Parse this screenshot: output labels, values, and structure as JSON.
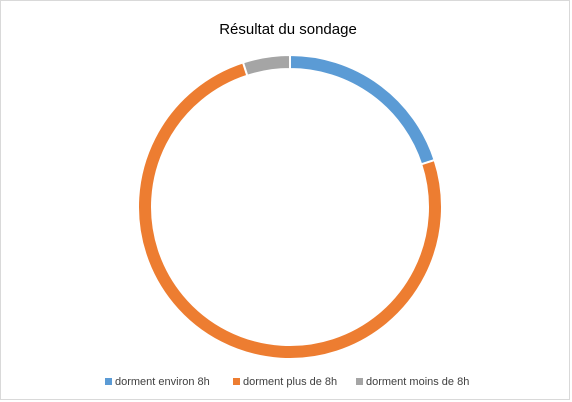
{
  "chart_data": {
    "type": "donut",
    "title": "Résultat du sondage",
    "categories": [
      "dorment environ 8h",
      "dorment plus de 8h",
      "dorment moins de 8h"
    ],
    "values": [
      20,
      75,
      5
    ],
    "colors": [
      "#5b9bd5",
      "#ed7d31",
      "#a5a5a5"
    ],
    "legend": "bottom"
  }
}
